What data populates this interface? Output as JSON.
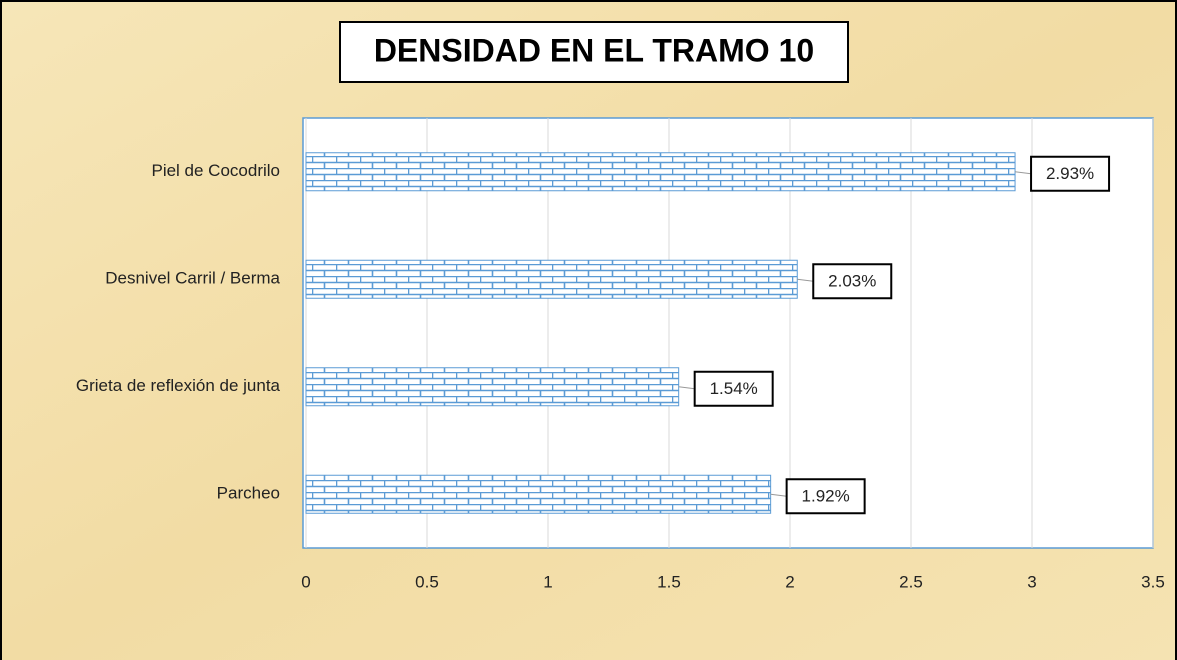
{
  "chart_data": {
    "type": "barh",
    "title": "DENSIDAD EN EL TRAMO 10",
    "categories": [
      "Piel de Cocodrilo",
      "Desnivel Carril / Berma",
      "Grieta de reflexión de junta",
      "Parcheo"
    ],
    "values": [
      2.93,
      2.03,
      1.54,
      1.92
    ],
    "value_labels": [
      "2.93%",
      "2.03%",
      "1.54%",
      "1.92%"
    ],
    "color": "#5b9bd5",
    "xlim": [
      0,
      3.5
    ],
    "xticks": [
      0,
      0.5,
      1,
      1.5,
      2,
      2.5,
      3,
      3.5
    ],
    "grid": true
  }
}
